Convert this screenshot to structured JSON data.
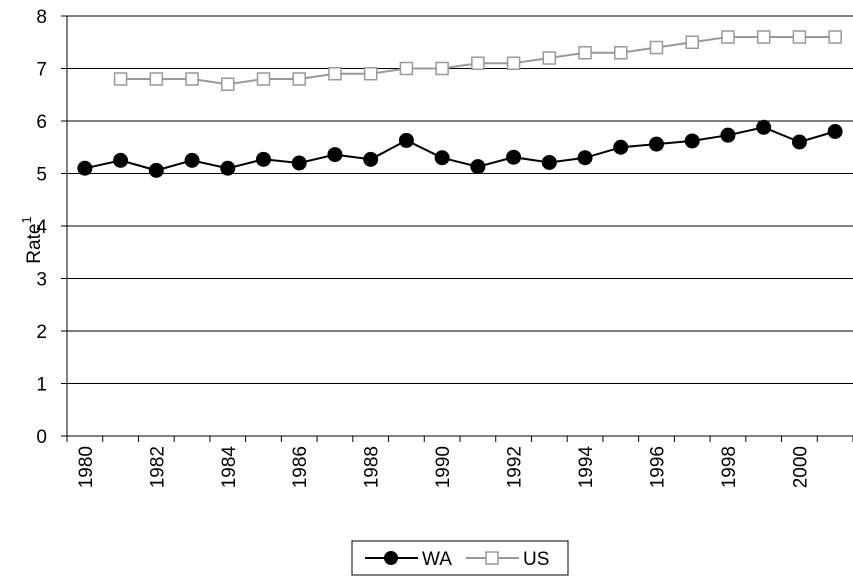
{
  "chart_data": {
    "type": "line",
    "x": [
      1980,
      1981,
      1982,
      1983,
      1984,
      1985,
      1986,
      1987,
      1988,
      1989,
      1990,
      1991,
      1992,
      1993,
      1994,
      1995,
      1996,
      1997,
      1998,
      1999,
      2000,
      2001
    ],
    "x_tick_labels": [
      "1980",
      "1982",
      "1984",
      "1986",
      "1988",
      "1990",
      "1992",
      "1994",
      "1996",
      "1998",
      "2000"
    ],
    "series": [
      {
        "name": "WA",
        "color": "#000000",
        "marker": "filled-circle",
        "values": [
          5.1,
          5.25,
          5.06,
          5.25,
          5.1,
          5.27,
          5.2,
          5.36,
          5.27,
          5.63,
          5.3,
          5.13,
          5.31,
          5.21,
          5.3,
          5.5,
          5.56,
          5.62,
          5.73,
          5.88,
          5.6,
          5.8
        ]
      },
      {
        "name": "US",
        "color": "#999999",
        "marker": "open-square",
        "values": [
          null,
          6.8,
          6.8,
          6.8,
          6.7,
          6.8,
          6.8,
          6.9,
          6.9,
          7.0,
          7.0,
          7.1,
          7.1,
          7.2,
          7.3,
          7.3,
          7.4,
          7.5,
          7.6,
          7.6,
          7.6,
          7.6
        ]
      }
    ],
    "title": "",
    "xlabel": "",
    "ylabel": "Rate",
    "ylabel_superscript": "1",
    "ylim": [
      0,
      8
    ],
    "y_ticks": [
      0,
      1,
      2,
      3,
      4,
      5,
      6,
      7,
      8
    ],
    "grid": "horizontal",
    "legend_position": "bottom"
  }
}
